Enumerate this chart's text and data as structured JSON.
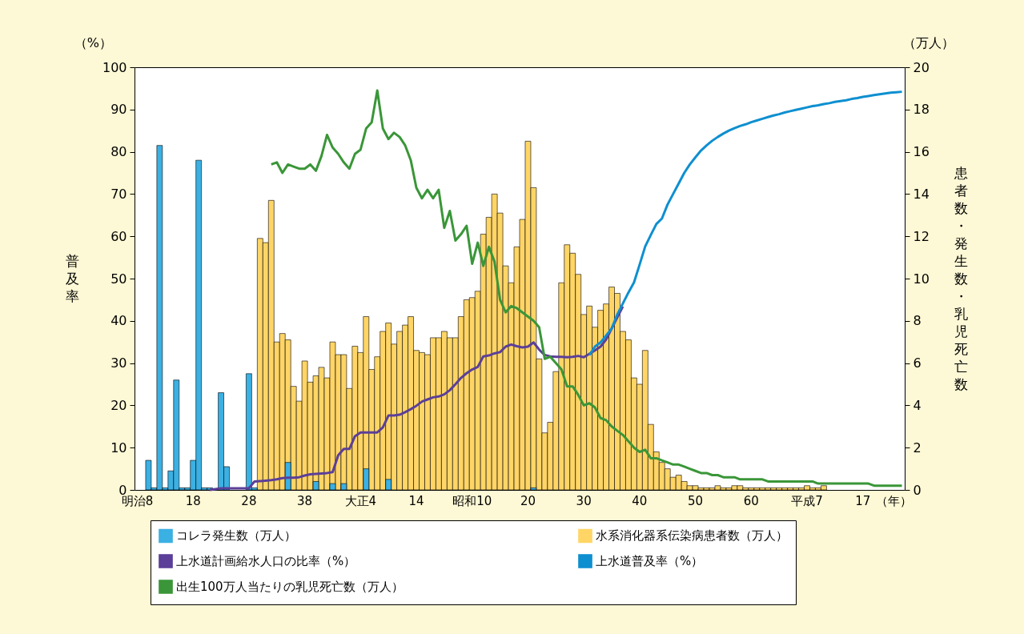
{
  "chart_data": {
    "type": "bar",
    "xlabel": "（年）",
    "ylabel": "普及率",
    "y2label": "患者数・発生数・乳児死亡数",
    "annotations": [
      "（%）",
      "（万人）"
    ],
    "categories": [
      "明治8",
      null,
      null,
      null,
      null,
      null,
      null,
      null,
      null,
      null,
      "18",
      null,
      null,
      null,
      null,
      null,
      null,
      null,
      null,
      null,
      "28",
      null,
      null,
      null,
      null,
      null,
      null,
      null,
      null,
      null,
      "38",
      null,
      null,
      null,
      null,
      null,
      null,
      null,
      null,
      null,
      "大正4",
      null,
      null,
      null,
      null,
      null,
      null,
      null,
      null,
      null,
      "14",
      null,
      null,
      null,
      null,
      null,
      null,
      null,
      null,
      null,
      "昭和10",
      null,
      null,
      null,
      null,
      null,
      null,
      null,
      null,
      null,
      "20",
      null,
      null,
      null,
      null,
      null,
      null,
      null,
      null,
      null,
      "30",
      null,
      null,
      null,
      null,
      null,
      null,
      null,
      null,
      null,
      "40",
      null,
      null,
      null,
      null,
      null,
      null,
      null,
      null,
      null,
      "50",
      null,
      null,
      null,
      null,
      null,
      null,
      null,
      null,
      null,
      "60",
      null,
      null,
      null,
      null,
      null,
      null,
      null,
      null,
      null,
      "平成7",
      null,
      null,
      null,
      null,
      null,
      null,
      null,
      null,
      null,
      "17",
      null,
      null,
      null,
      null,
      null,
      null,
      null
    ],
    "ylim": [
      0,
      100
    ],
    "yticks": [
      0,
      10,
      20,
      30,
      40,
      50,
      60,
      70,
      80,
      90,
      100
    ],
    "y2lim": [
      0,
      20
    ],
    "y2ticks": [
      0,
      2,
      4,
      6,
      8,
      10,
      12,
      14,
      16,
      18,
      20
    ],
    "legend": "bottom",
    "series": [
      {
        "name": "コレラ発生数（万人）",
        "type": "bar",
        "axis": "y2",
        "color": "#3bb0e3",
        "values": [
          null,
          null,
          1.4,
          0.1,
          16.3,
          0.1,
          0.9,
          5.2,
          0.1,
          0.1,
          1.4,
          15.6,
          0.1,
          0.1,
          null,
          4.6,
          1.1,
          null,
          null,
          null,
          5.5,
          0.1,
          null,
          null,
          null,
          null,
          null,
          1.3,
          null,
          null,
          null,
          null,
          0.4,
          null,
          null,
          0.3,
          null,
          0.3,
          null,
          null,
          null,
          1.0,
          null,
          null,
          null,
          0.5,
          null,
          null,
          null,
          null,
          null,
          null,
          null,
          null,
          null,
          null,
          null,
          null,
          null,
          null,
          null,
          null,
          null,
          null,
          null,
          null,
          null,
          null,
          null,
          null,
          null,
          0.1,
          null,
          null,
          null,
          null,
          null,
          null,
          null,
          null,
          null,
          null,
          null,
          null,
          null,
          null,
          null,
          null,
          null,
          null,
          null,
          null,
          null,
          null,
          null,
          null,
          null,
          null,
          null,
          null,
          null,
          null,
          null,
          null,
          null,
          null,
          null,
          null,
          null,
          null,
          null,
          null,
          null,
          null,
          null,
          null,
          null,
          null,
          null,
          null,
          null,
          null,
          null,
          null,
          null,
          null,
          null,
          null,
          null,
          null,
          null,
          null,
          null,
          null,
          null,
          null,
          null,
          null
        ]
      },
      {
        "name": "水系消化器系伝染病患者数（万人）",
        "type": "bar",
        "axis": "y2",
        "color": "#ffd566",
        "values": [
          null,
          null,
          null,
          null,
          null,
          null,
          null,
          null,
          null,
          null,
          null,
          null,
          null,
          null,
          null,
          null,
          null,
          null,
          null,
          null,
          null,
          null,
          11.9,
          11.7,
          13.7,
          7.0,
          7.4,
          7.1,
          4.9,
          4.2,
          6.1,
          5.1,
          5.4,
          5.8,
          5.3,
          7.0,
          6.4,
          6.4,
          4.8,
          6.8,
          6.5,
          8.2,
          5.7,
          6.3,
          7.5,
          7.9,
          6.9,
          7.5,
          7.8,
          8.2,
          6.6,
          6.5,
          6.4,
          7.2,
          7.2,
          7.5,
          7.2,
          7.2,
          8.2,
          9.0,
          9.1,
          9.4,
          12.1,
          12.9,
          14.0,
          13.1,
          10.6,
          9.8,
          11.5,
          12.8,
          16.5,
          14.3,
          6.2,
          2.7,
          3.2,
          5.6,
          9.8,
          11.6,
          11.2,
          10.2,
          8.3,
          8.7,
          7.7,
          8.5,
          8.8,
          9.6,
          9.3,
          7.5,
          7.1,
          5.3,
          5.0,
          6.6,
          3.1,
          1.8,
          1.3,
          1.0,
          0.6,
          0.7,
          0.4,
          0.2,
          0.2,
          0.1,
          0.1,
          0.1,
          0.2,
          0.1,
          0.1,
          0.2,
          0.2,
          0.1,
          0.1,
          0.1,
          0.1,
          0.1,
          0.1,
          0.1,
          0.1,
          0.1,
          0.1,
          0.1,
          0.2,
          0.1,
          0.1,
          0.2,
          null,
          null,
          null,
          null,
          null,
          null,
          null,
          null,
          null,
          null,
          null,
          null,
          null,
          null
        ]
      },
      {
        "name": "上水道計画給水人口の比率（%）",
        "type": "line",
        "axis": "y",
        "color": "#5b3f99",
        "values": [
          null,
          null,
          null,
          null,
          null,
          null,
          null,
          null,
          null,
          null,
          null,
          null,
          null,
          0.0,
          0.2,
          0.4,
          0.4,
          0.4,
          0.4,
          0.4,
          0.4,
          2.0,
          2.1,
          2.2,
          2.3,
          2.5,
          2.8,
          2.9,
          2.9,
          3.0,
          3.4,
          3.7,
          3.8,
          3.9,
          4.0,
          4.2,
          8.2,
          9.7,
          9.7,
          12.7,
          13.6,
          13.6,
          13.6,
          13.6,
          14.8,
          17.6,
          17.6,
          17.8,
          18.4,
          19.1,
          19.9,
          20.9,
          21.4,
          21.9,
          22.1,
          22.6,
          23.6,
          25.0,
          26.5,
          27.6,
          28.5,
          29.1,
          31.6,
          31.8,
          32.3,
          32.6,
          33.9,
          34.4,
          34.0,
          33.7,
          33.9,
          34.9,
          33.2,
          31.9,
          31.6,
          31.5,
          31.5,
          31.4,
          31.5,
          31.7,
          31.4,
          32.2,
          33.0,
          33.9,
          35.6,
          38.2,
          40.8,
          43.4,
          null,
          null,
          null,
          null,
          null,
          null,
          null,
          null,
          null,
          null,
          null,
          null,
          null,
          null,
          null,
          null,
          null,
          null,
          null,
          null,
          null,
          null,
          null,
          null,
          null,
          null,
          null,
          null,
          null,
          null,
          null,
          null,
          null,
          null,
          null,
          null,
          null,
          null,
          null,
          null,
          null,
          null,
          null,
          null,
          null,
          null,
          null,
          null,
          null,
          null
        ]
      },
      {
        "name": "上水道普及率（%）",
        "type": "line",
        "axis": "y",
        "color": "#0e8fd0",
        "values": [
          null,
          null,
          null,
          null,
          null,
          null,
          null,
          null,
          null,
          null,
          null,
          null,
          null,
          null,
          null,
          null,
          null,
          null,
          null,
          null,
          null,
          null,
          null,
          null,
          null,
          null,
          null,
          null,
          null,
          null,
          null,
          null,
          null,
          null,
          null,
          null,
          null,
          null,
          null,
          null,
          null,
          null,
          null,
          null,
          null,
          null,
          null,
          null,
          null,
          null,
          null,
          null,
          null,
          null,
          null,
          null,
          null,
          null,
          null,
          null,
          null,
          null,
          null,
          null,
          null,
          null,
          null,
          null,
          null,
          null,
          null,
          null,
          null,
          null,
          null,
          null,
          null,
          null,
          null,
          null,
          null,
          31.9,
          33.9,
          34.9,
          36.5,
          38.2,
          41.5,
          44.1,
          46.7,
          49.1,
          53.3,
          57.6,
          60.3,
          62.9,
          64.2,
          67.5,
          70.0,
          72.5,
          75.0,
          77.0,
          78.7,
          80.3,
          81.5,
          82.6,
          83.5,
          84.3,
          85.0,
          85.6,
          86.1,
          86.5,
          87.0,
          87.4,
          87.8,
          88.2,
          88.6,
          88.9,
          89.3,
          89.6,
          89.9,
          90.2,
          90.5,
          90.8,
          91.0,
          91.3,
          91.5,
          91.8,
          92.0,
          92.2,
          92.5,
          92.7,
          93.0,
          93.2,
          93.4,
          93.6,
          93.8,
          94.0,
          94.1,
          94.2
        ]
      },
      {
        "name": "出生100万人当たりの乳児死亡数（万人）",
        "type": "line",
        "axis": "y2",
        "color": "#3a9638",
        "values": [
          null,
          null,
          null,
          null,
          null,
          null,
          null,
          null,
          null,
          null,
          null,
          null,
          null,
          null,
          null,
          null,
          null,
          null,
          null,
          null,
          null,
          null,
          null,
          null,
          15.4,
          15.5,
          15.0,
          15.4,
          15.3,
          15.2,
          15.2,
          15.4,
          15.1,
          15.8,
          16.8,
          16.2,
          15.9,
          15.5,
          15.2,
          15.9,
          16.1,
          17.1,
          17.4,
          18.9,
          17.1,
          16.6,
          16.9,
          16.7,
          16.3,
          15.6,
          14.3,
          13.8,
          14.2,
          13.8,
          14.2,
          12.4,
          13.2,
          11.8,
          12.1,
          12.5,
          10.7,
          11.7,
          10.6,
          11.5,
          10.8,
          9.0,
          8.4,
          8.7,
          8.6,
          8.4,
          8.2,
          8.0,
          7.7,
          6.2,
          6.3,
          6.0,
          5.7,
          4.9,
          4.9,
          4.5,
          4.0,
          4.1,
          3.9,
          3.4,
          3.3,
          3.0,
          2.8,
          2.6,
          2.3,
          2.0,
          1.8,
          1.9,
          1.5,
          1.5,
          1.4,
          1.3,
          1.2,
          1.2,
          1.1,
          1.0,
          0.9,
          0.8,
          0.8,
          0.7,
          0.7,
          0.6,
          0.6,
          0.6,
          0.5,
          0.5,
          0.5,
          0.5,
          0.5,
          0.4,
          0.4,
          0.4,
          0.4,
          0.4,
          0.4,
          0.4,
          0.4,
          0.4,
          0.3,
          0.3,
          0.3,
          0.3,
          0.3,
          0.3,
          0.3,
          0.3,
          0.3,
          0.3,
          0.2,
          0.2,
          0.2,
          0.2,
          0.2,
          0.2
        ]
      }
    ]
  }
}
